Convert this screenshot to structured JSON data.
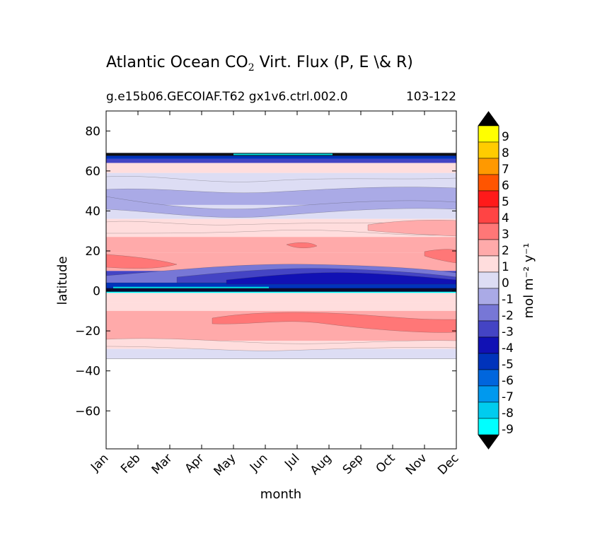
{
  "title_main": "Atlantic Ocean CO",
  "title_sub": "2",
  "title_rest": " Virt. Flux (P, E \\& R)",
  "subtitle": "g.e15b06.GECOIAF.T62 gx1v6.ctrl.002.0",
  "years": "103-122",
  "chart_data": {
    "type": "heatmap",
    "xlabel": "month",
    "ylabel": "latitude",
    "x_categories": [
      "Jan",
      "Feb",
      "Mar",
      "Apr",
      "May",
      "Jun",
      "Jul",
      "Aug",
      "Sep",
      "Oct",
      "Nov",
      "Dec"
    ],
    "y_ticks": [
      80,
      60,
      40,
      20,
      0,
      -20,
      -40,
      -60
    ],
    "y_tick_labels": [
      "80",
      "60",
      "40",
      "20",
      "0",
      "−20",
      "−40",
      "−60"
    ],
    "ylim": [
      -79,
      90
    ],
    "data_lat_range": [
      -34,
      69
    ],
    "colorbar": {
      "label": "mol m⁻² y⁻¹",
      "ticks": [
        "9",
        "8",
        "7",
        "6",
        "5",
        "4",
        "3",
        "2",
        "1",
        "0",
        "-1",
        "-2",
        "-3",
        "-4",
        "-5",
        "-6",
        "-7",
        "-8",
        "-9"
      ],
      "colors_top_to_bottom": [
        "#ffff00",
        "#ffcc00",
        "#ff9900",
        "#ff5500",
        "#ff1a1a",
        "#ff4444",
        "#ff7777",
        "#ffaaaa",
        "#ffdddd",
        "#ddddf4",
        "#aaaae6",
        "#7777d6",
        "#4444c4",
        "#1111b4",
        "#0033bb",
        "#0066dd",
        "#0099ee",
        "#00ccee",
        "#00ffff"
      ],
      "extend_color": "#000000"
    },
    "bands": [
      {
        "lat_top": 69,
        "lat_bottom": 66,
        "value": -5
      },
      {
        "lat_top": 66,
        "lat_bottom": 64,
        "value": -3
      },
      {
        "lat_top": 64,
        "lat_bottom": 59,
        "value": 1
      },
      {
        "lat_top": 59,
        "lat_bottom": 52,
        "value": 0
      },
      {
        "lat_top": 52,
        "lat_bottom": 43,
        "value": -1
      },
      {
        "lat_top": 43,
        "lat_bottom": 36,
        "value": 0
      },
      {
        "lat_top": 36,
        "lat_bottom": 27,
        "value": 1
      },
      {
        "lat_top": 27,
        "lat_bottom": 19,
        "value": 2
      },
      {
        "lat_top": 19,
        "lat_bottom": 10,
        "value": 2
      },
      {
        "lat_top": 10,
        "lat_bottom": 6,
        "value": -3
      },
      {
        "lat_top": 6,
        "lat_bottom": 1,
        "value": -5
      },
      {
        "lat_top": 1,
        "lat_bottom": -1,
        "value": -9
      },
      {
        "lat_top": -1,
        "lat_bottom": -6,
        "value": 1
      },
      {
        "lat_top": -6,
        "lat_bottom": -10,
        "value": 1
      },
      {
        "lat_top": -10,
        "lat_bottom": -25,
        "value": 2
      },
      {
        "lat_top": -25,
        "lat_bottom": -29,
        "value": 1
      },
      {
        "lat_top": -29,
        "lat_bottom": -34,
        "value": 0
      }
    ]
  }
}
